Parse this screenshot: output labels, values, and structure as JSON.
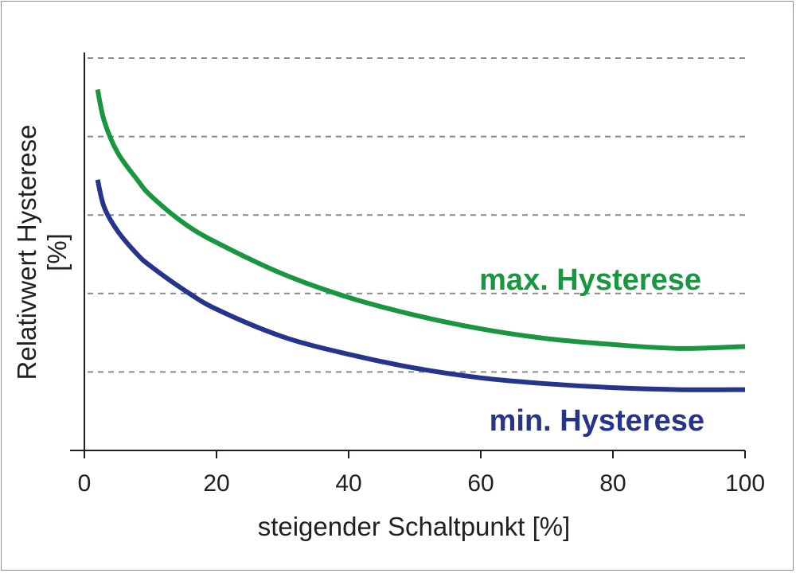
{
  "chart_data": {
    "type": "line",
    "title": "",
    "xlabel": "steigender Schaltpunkt [%]",
    "ylabel_line1": "Relativwert Hysterese",
    "ylabel_line2": "[%]",
    "xlim": [
      0,
      100
    ],
    "ylim": [
      0,
      100
    ],
    "x_ticks": [
      "0",
      "20",
      "40",
      "60",
      "80",
      "100"
    ],
    "x_tick_values": [
      0,
      20,
      40,
      60,
      80,
      100
    ],
    "y_ticks_values": [
      20,
      40,
      60,
      80,
      100
    ],
    "y_tick_labels_shown": false,
    "grid": "horizontal-dashed",
    "legend": "inline",
    "series": [
      {
        "name": "max. Hysterese",
        "color": "#1a9641",
        "x": [
          2,
          3,
          5,
          8,
          10,
          15,
          20,
          30,
          40,
          50,
          60,
          70,
          80,
          90,
          100
        ],
        "y": [
          92,
          84,
          76,
          69,
          65,
          58,
          53,
          45,
          39,
          34.5,
          31,
          28.5,
          27,
          26,
          26.5
        ]
      },
      {
        "name": "min. Hysterese",
        "color": "#27348b",
        "x": [
          2,
          3,
          5,
          8,
          10,
          15,
          20,
          30,
          40,
          50,
          60,
          70,
          80,
          90,
          100
        ],
        "y": [
          69,
          62,
          56,
          50,
          47,
          41,
          36,
          29,
          24.5,
          21,
          18.5,
          17,
          16,
          15.5,
          15.5
        ]
      }
    ]
  }
}
